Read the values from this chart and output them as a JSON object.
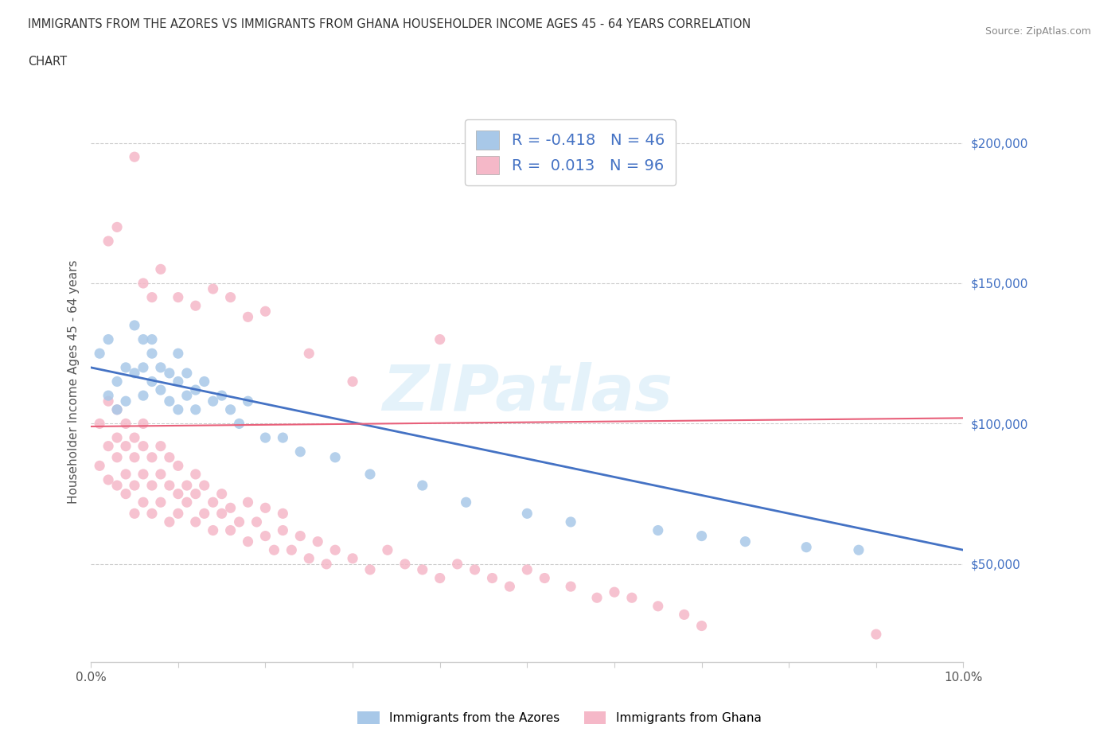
{
  "title_line1": "IMMIGRANTS FROM THE AZORES VS IMMIGRANTS FROM GHANA HOUSEHOLDER INCOME AGES 45 - 64 YEARS CORRELATION",
  "title_line2": "CHART",
  "source_text": "Source: ZipAtlas.com",
  "ylabel": "Householder Income Ages 45 - 64 years",
  "xlim": [
    0.0,
    0.1
  ],
  "ylim": [
    15000,
    215000
  ],
  "ytick_labels": [
    "$50,000",
    "$100,000",
    "$150,000",
    "$200,000"
  ],
  "ytick_values": [
    50000,
    100000,
    150000,
    200000
  ],
  "azores_color": "#a8c8e8",
  "ghana_color": "#f5b8c8",
  "azores_line_color": "#4472c4",
  "ghana_line_color": "#e8607a",
  "r_azores": -0.418,
  "n_azores": 46,
  "r_ghana": 0.013,
  "n_ghana": 96,
  "watermark": "ZIPatlas",
  "background_color": "#ffffff",
  "grid_color": "#cccccc",
  "azores_x": [
    0.001,
    0.002,
    0.002,
    0.003,
    0.003,
    0.004,
    0.004,
    0.005,
    0.005,
    0.006,
    0.006,
    0.006,
    0.007,
    0.007,
    0.007,
    0.008,
    0.008,
    0.009,
    0.009,
    0.01,
    0.01,
    0.01,
    0.011,
    0.011,
    0.012,
    0.012,
    0.013,
    0.014,
    0.015,
    0.016,
    0.017,
    0.018,
    0.02,
    0.022,
    0.024,
    0.028,
    0.032,
    0.038,
    0.043,
    0.05,
    0.055,
    0.065,
    0.07,
    0.075,
    0.082,
    0.088
  ],
  "azores_y": [
    125000,
    110000,
    130000,
    115000,
    105000,
    120000,
    108000,
    135000,
    118000,
    130000,
    120000,
    110000,
    125000,
    115000,
    130000,
    112000,
    120000,
    118000,
    108000,
    115000,
    105000,
    125000,
    110000,
    118000,
    112000,
    105000,
    115000,
    108000,
    110000,
    105000,
    100000,
    108000,
    95000,
    95000,
    90000,
    88000,
    82000,
    78000,
    72000,
    68000,
    65000,
    62000,
    60000,
    58000,
    56000,
    55000
  ],
  "ghana_x": [
    0.001,
    0.001,
    0.002,
    0.002,
    0.002,
    0.003,
    0.003,
    0.003,
    0.003,
    0.004,
    0.004,
    0.004,
    0.004,
    0.005,
    0.005,
    0.005,
    0.005,
    0.006,
    0.006,
    0.006,
    0.006,
    0.007,
    0.007,
    0.007,
    0.008,
    0.008,
    0.008,
    0.009,
    0.009,
    0.009,
    0.01,
    0.01,
    0.01,
    0.011,
    0.011,
    0.012,
    0.012,
    0.012,
    0.013,
    0.013,
    0.014,
    0.014,
    0.015,
    0.015,
    0.016,
    0.016,
    0.017,
    0.018,
    0.018,
    0.019,
    0.02,
    0.02,
    0.021,
    0.022,
    0.022,
    0.023,
    0.024,
    0.025,
    0.026,
    0.027,
    0.028,
    0.03,
    0.032,
    0.034,
    0.036,
    0.038,
    0.04,
    0.042,
    0.044,
    0.046,
    0.048,
    0.05,
    0.052,
    0.055,
    0.058,
    0.06,
    0.062,
    0.065,
    0.068,
    0.07,
    0.002,
    0.003,
    0.005,
    0.006,
    0.007,
    0.008,
    0.01,
    0.012,
    0.014,
    0.016,
    0.018,
    0.02,
    0.025,
    0.03,
    0.04,
    0.09
  ],
  "ghana_y": [
    100000,
    85000,
    92000,
    80000,
    108000,
    88000,
    95000,
    78000,
    105000,
    82000,
    92000,
    75000,
    100000,
    88000,
    78000,
    95000,
    68000,
    82000,
    92000,
    72000,
    100000,
    78000,
    88000,
    68000,
    82000,
    92000,
    72000,
    78000,
    88000,
    65000,
    75000,
    85000,
    68000,
    78000,
    72000,
    65000,
    75000,
    82000,
    68000,
    78000,
    62000,
    72000,
    68000,
    75000,
    62000,
    70000,
    65000,
    72000,
    58000,
    65000,
    60000,
    70000,
    55000,
    62000,
    68000,
    55000,
    60000,
    52000,
    58000,
    50000,
    55000,
    52000,
    48000,
    55000,
    50000,
    48000,
    45000,
    50000,
    48000,
    45000,
    42000,
    48000,
    45000,
    42000,
    38000,
    40000,
    38000,
    35000,
    32000,
    28000,
    165000,
    170000,
    195000,
    150000,
    145000,
    155000,
    145000,
    142000,
    148000,
    145000,
    138000,
    140000,
    125000,
    115000,
    130000,
    25000
  ]
}
